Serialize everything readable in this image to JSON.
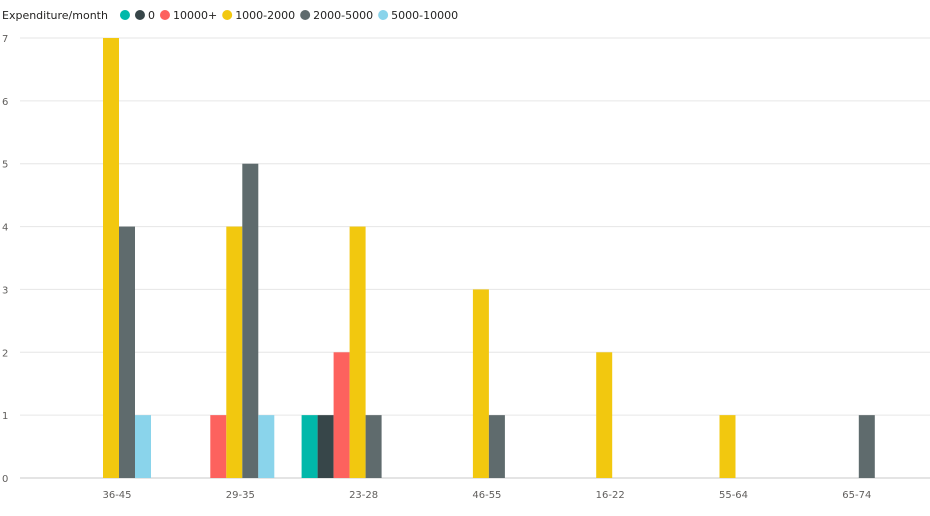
{
  "chart_data": {
    "type": "bar",
    "legend_title": "Expenditure/month",
    "legend_position": "top-left",
    "categories": [
      "36-45",
      "29-35",
      "23-28",
      "46-55",
      "16-22",
      "55-64",
      "65-74"
    ],
    "series": [
      {
        "name": "",
        "color": "#01b8aa",
        "values": [
          0,
          0,
          1,
          0,
          0,
          0,
          0
        ]
      },
      {
        "name": "0",
        "color": "#374649",
        "values": [
          0,
          0,
          1,
          0,
          0,
          0,
          0
        ]
      },
      {
        "name": "10000+",
        "color": "#fd625e",
        "values": [
          0,
          1,
          2,
          0,
          0,
          0,
          0
        ]
      },
      {
        "name": "1000-2000",
        "color": "#f2c80f",
        "values": [
          7,
          4,
          4,
          3,
          2,
          1,
          0
        ]
      },
      {
        "name": "2000-5000",
        "color": "#5f6b6d",
        "values": [
          4,
          5,
          1,
          1,
          0,
          0,
          1
        ]
      },
      {
        "name": "5000-10000",
        "color": "#8ad4eb",
        "values": [
          1,
          1,
          0,
          0,
          0,
          0,
          0
        ]
      }
    ],
    "y_ticks": [
      0,
      1,
      2,
      3,
      4,
      5,
      6,
      7
    ],
    "ylim": [
      0,
      7
    ],
    "grid": true,
    "title": "",
    "xlabel": "",
    "ylabel": ""
  }
}
